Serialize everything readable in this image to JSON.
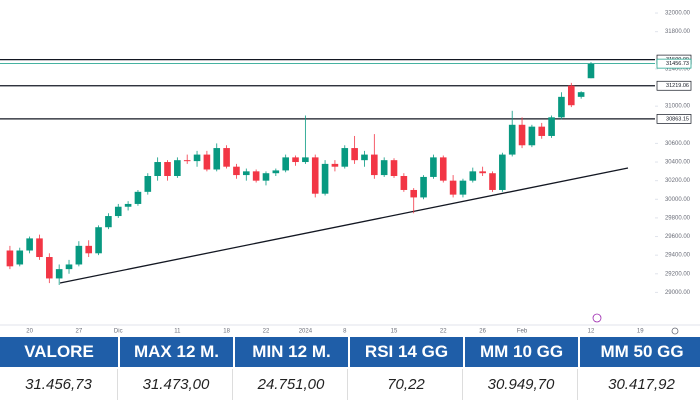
{
  "chart_data": {
    "type": "candlestick",
    "categories": [
      null,
      null,
      "20",
      null,
      null,
      null,
      null,
      "27",
      null,
      null,
      null,
      "Dic",
      null,
      null,
      null,
      null,
      null,
      "11",
      null,
      null,
      null,
      null,
      "18",
      null,
      null,
      null,
      "22",
      null,
      null,
      null,
      "2024",
      null,
      null,
      null,
      "8",
      null,
      null,
      null,
      null,
      "15",
      null,
      null,
      null,
      null,
      "22",
      null,
      null,
      null,
      "26",
      null,
      null,
      null,
      "Feb",
      null,
      null,
      null,
      null,
      null,
      null,
      "12",
      null,
      null,
      null,
      null,
      "19",
      null
    ],
    "open": [
      29450,
      29300,
      29450,
      29580,
      29380,
      29150,
      29250,
      29300,
      29500,
      29420,
      29700,
      29820,
      29920,
      29950,
      30080,
      30250,
      30400,
      30250,
      30420,
      30410,
      30480,
      30320,
      30550,
      30350,
      30260,
      30300,
      30200,
      30280,
      30310,
      30450,
      30400,
      30450,
      30060,
      30380,
      30350,
      30550,
      30420,
      30480,
      30260,
      30420,
      30250,
      30100,
      30020,
      30240,
      30450,
      30200,
      30050,
      30200,
      30300,
      30280,
      30100,
      30480,
      30800,
      30580,
      30780,
      30680,
      30880,
      31220,
      31100,
      31300,
      null,
      null,
      null,
      null,
      null,
      null
    ],
    "high": [
      29500,
      29480,
      29600,
      29620,
      29420,
      29300,
      29350,
      29550,
      29560,
      29720,
      29850,
      29950,
      29980,
      30100,
      30280,
      30450,
      30420,
      30450,
      30480,
      30520,
      30520,
      30600,
      30580,
      30380,
      30330,
      30320,
      30300,
      30330,
      30480,
      30470,
      30900,
      30480,
      30420,
      30420,
      30580,
      30680,
      30520,
      30700,
      30450,
      30440,
      30280,
      30120,
      30260,
      30480,
      30470,
      30260,
      30220,
      30340,
      30350,
      30300,
      30500,
      30950,
      30880,
      30800,
      30820,
      30900,
      31150,
      31250,
      31160,
      31473,
      null,
      null,
      null,
      null,
      null,
      null
    ],
    "low": [
      29250,
      29280,
      29420,
      29350,
      29100,
      29080,
      29200,
      29280,
      29380,
      29400,
      29680,
      29800,
      29880,
      29930,
      30050,
      30200,
      30200,
      30230,
      30380,
      30350,
      30300,
      30300,
      30330,
      30220,
      30200,
      30180,
      30150,
      30250,
      30290,
      30360,
      30380,
      30020,
      30040,
      30300,
      30330,
      30380,
      30350,
      30220,
      30240,
      30230,
      30080,
      29850,
      30000,
      30220,
      30180,
      30020,
      30020,
      30180,
      30250,
      30080,
      30080,
      30460,
      30550,
      30560,
      30650,
      30660,
      30860,
      30990,
      31080,
      31300,
      null,
      null,
      null,
      null,
      null,
      null
    ],
    "close": [
      29280,
      29450,
      29580,
      29380,
      29150,
      29250,
      29300,
      29500,
      29420,
      29700,
      29820,
      29920,
      29950,
      30080,
      30250,
      30400,
      30250,
      30420,
      30410,
      30480,
      30320,
      30550,
      30350,
      30260,
      30300,
      30200,
      30280,
      30310,
      30450,
      30400,
      30450,
      30060,
      30380,
      30350,
      30550,
      30420,
      30480,
      30260,
      30420,
      30250,
      30100,
      30020,
      30240,
      30450,
      30200,
      30050,
      30200,
      30300,
      30280,
      30100,
      30480,
      30800,
      30580,
      30780,
      30680,
      30880,
      31100,
      31010,
      31150,
      31456.73,
      null,
      null,
      null,
      null,
      null,
      null
    ],
    "up_color": "#089981",
    "down_color": "#f23645",
    "ylim": [
      28650,
      32140
    ],
    "yticks": [
      {
        "value": 29000,
        "label": "29000.00"
      },
      {
        "value": 29200,
        "label": "29200.00"
      },
      {
        "value": 29400,
        "label": "29400.00"
      },
      {
        "value": 29600,
        "label": "29600.00"
      },
      {
        "value": 29800,
        "label": "29800.00"
      },
      {
        "value": 30000,
        "label": "30000.00"
      },
      {
        "value": 30200,
        "label": "30200.00"
      },
      {
        "value": 30400,
        "label": "30400.00"
      },
      {
        "value": 30600,
        "label": "30600.00"
      },
      {
        "value": 31000,
        "label": "31000.00"
      },
      {
        "value": 31400,
        "label": "31400.00"
      },
      {
        "value": 31800,
        "label": "31800.00"
      },
      {
        "value": 32000,
        "label": "32000.00"
      }
    ],
    "grid": false,
    "levels": [
      {
        "value": 31500,
        "label": "31500.00",
        "color": "#131722"
      },
      {
        "value": 31456.73,
        "label": "31456.73",
        "color": "#089981"
      },
      {
        "value": 31219.06,
        "label": "31219.06",
        "color": "#131722"
      },
      {
        "value": 30863.15,
        "label": "30863.15",
        "color": "#131722"
      }
    ]
  },
  "table": {
    "header": [
      "VALORE",
      "MAX 12 M.",
      "MIN 12 M.",
      "RSI 14 GG",
      "MM 10 GG",
      "MM 50 GG"
    ],
    "rows": [
      [
        "31.456,73",
        "31.473,00",
        "24.751,00",
        "70,22",
        "30.949,70",
        "30.417,92"
      ]
    ]
  }
}
